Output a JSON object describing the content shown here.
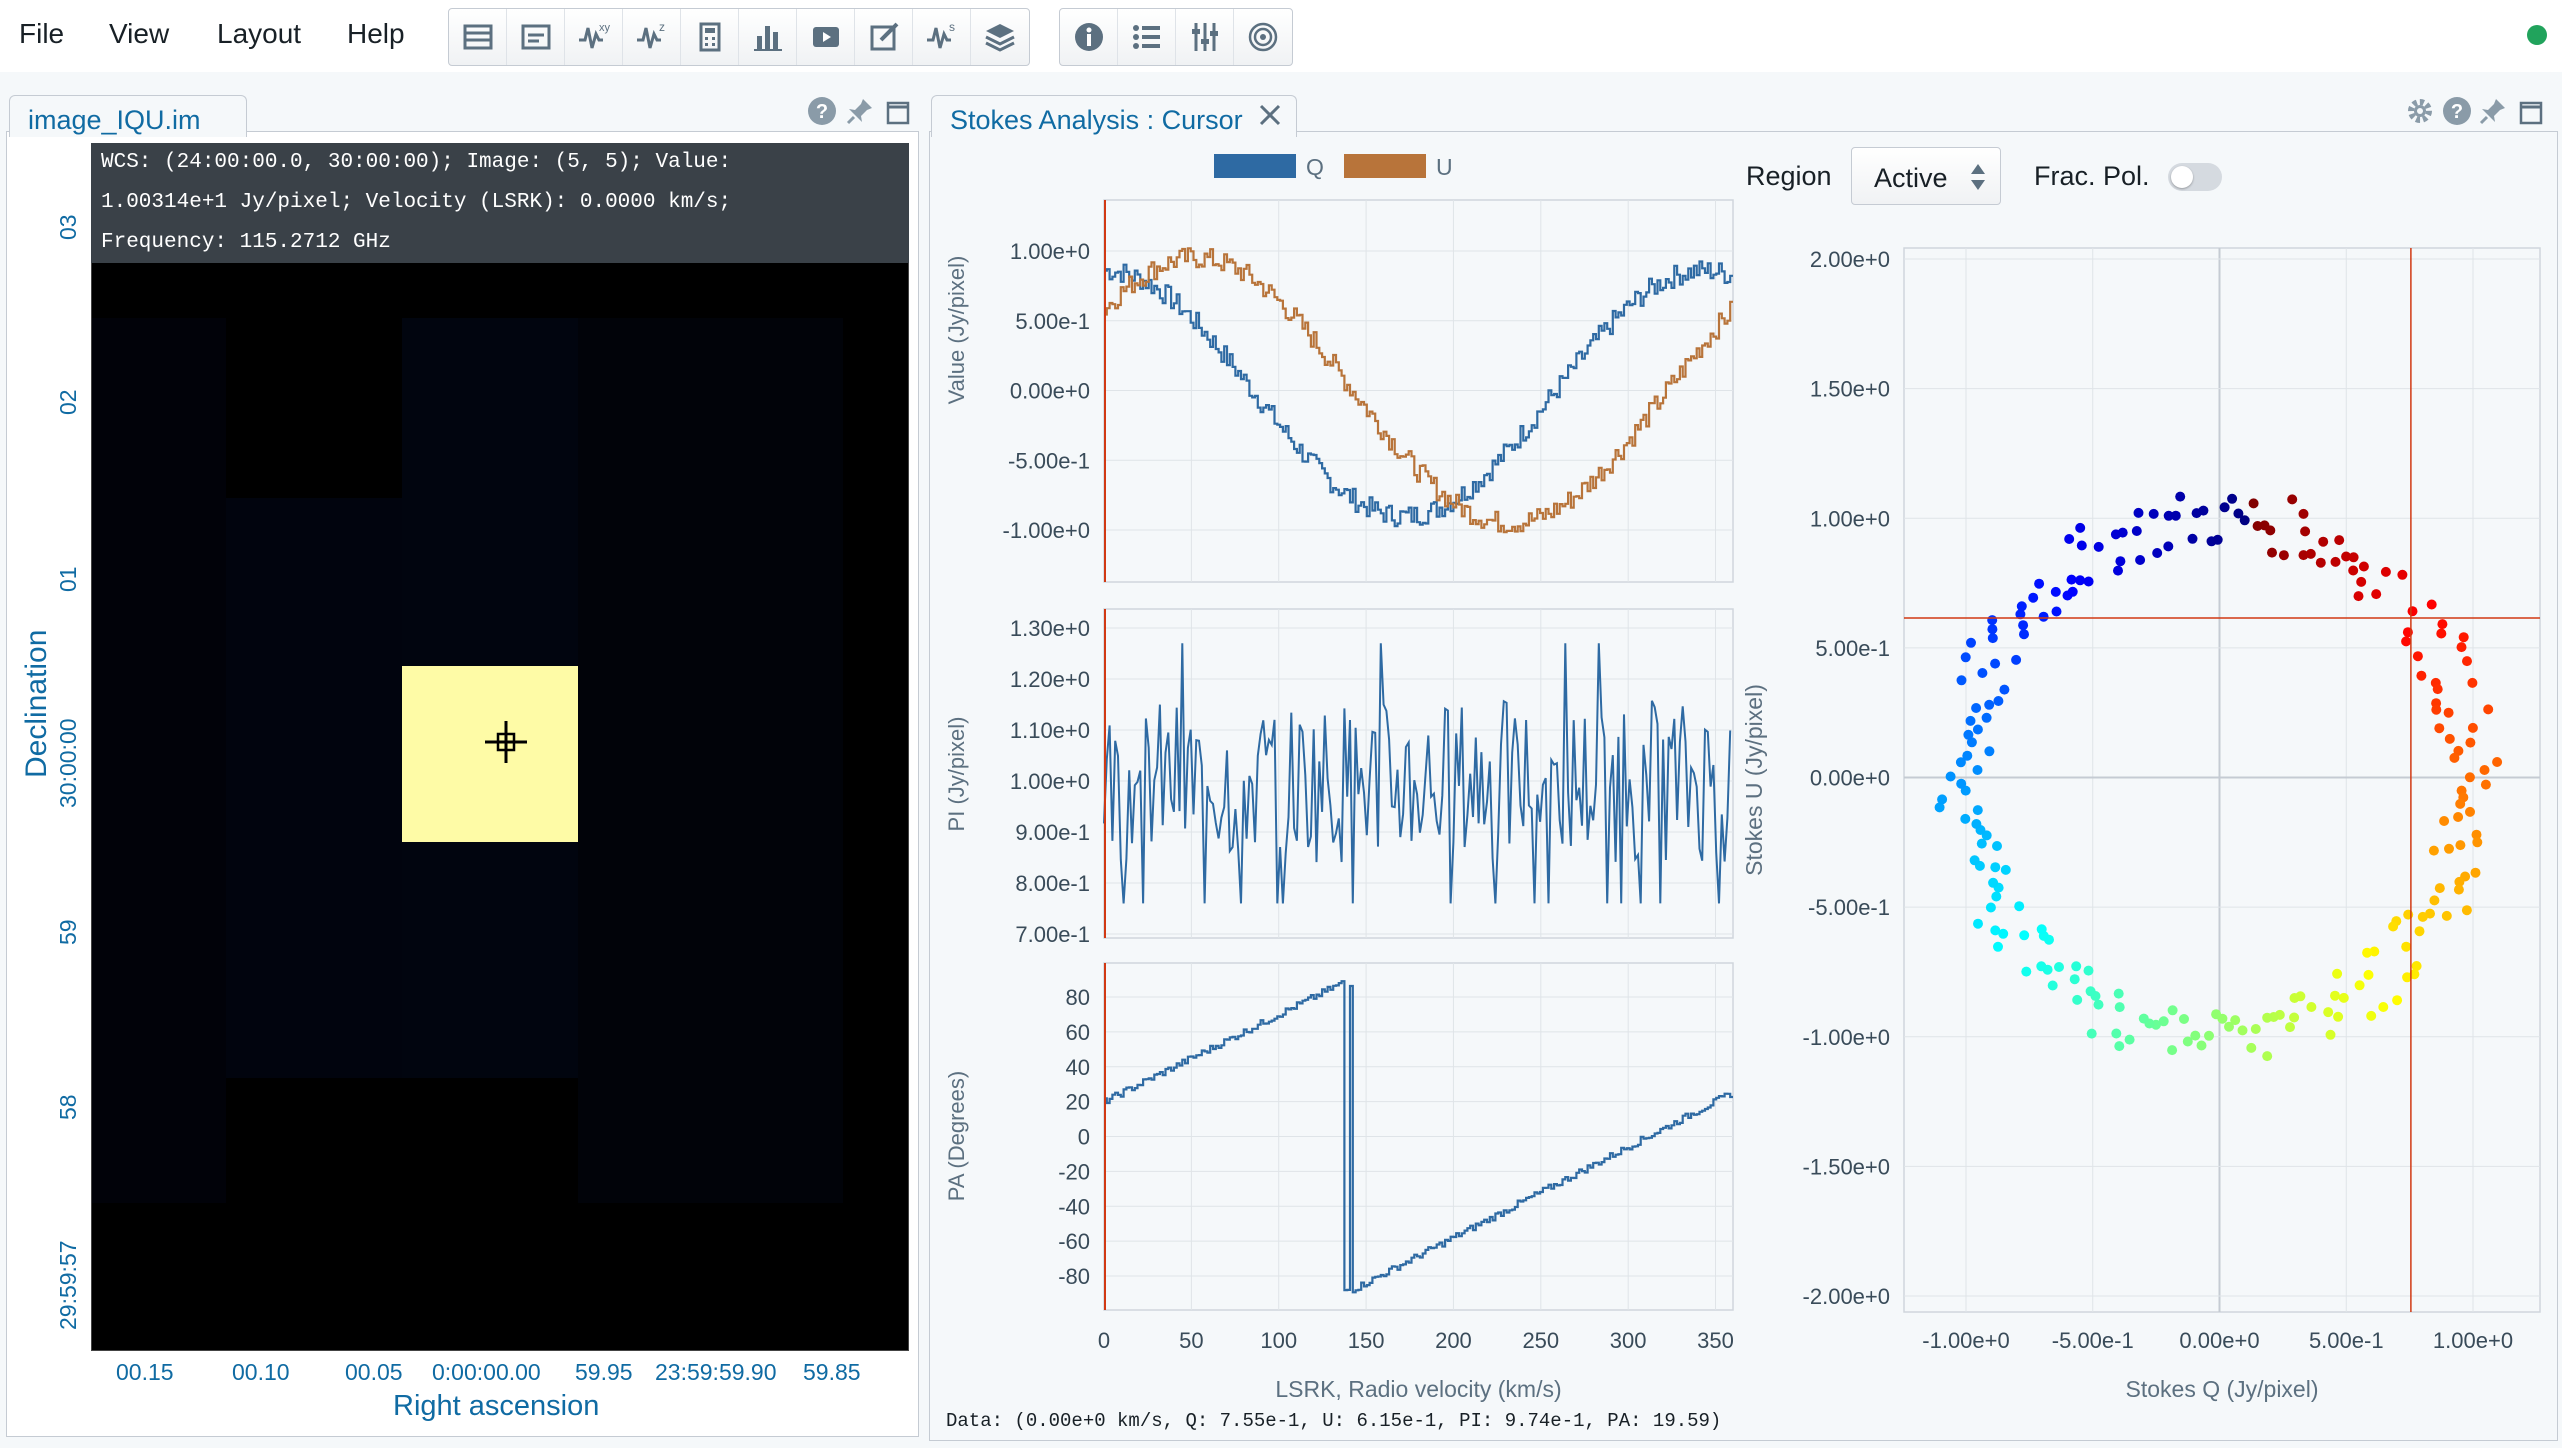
{
  "menu": {
    "items": [
      "File",
      "View",
      "Layout",
      "Help"
    ]
  },
  "toolbar": {
    "group1_icons": [
      "layers-list-icon",
      "render-config-icon",
      "spatial-profiler-icon",
      "spectral-profiler-icon",
      "statistics-calculator-icon",
      "histogram-icon",
      "animator-icon",
      "catalog-edit-icon",
      "stokes-analysis-icon",
      "image-list-icon"
    ],
    "group2_icons": [
      "info-icon",
      "list-icon",
      "sliders-icon",
      "target-icon"
    ],
    "xy_badge": "xy",
    "z_badge": "z",
    "s_badge": "s",
    "status_color": "#21a35c"
  },
  "image_panel": {
    "tab": "image_IQU.im",
    "info_lines": [
      "WCS: (24:00:00.0, 30:00:00); Image: (5, 5); Value:",
      "1.00314e+1 Jy/pixel; Velocity (LSRK): 0.0000 km/s;",
      "Frequency: 115.2712 GHz"
    ],
    "y_axis_title": "Declination",
    "y_ticks": [
      "03",
      "02",
      "01",
      "30:00:00",
      "59",
      "58",
      "29:59:57"
    ],
    "x_axis_title": "Right ascension",
    "x_ticks": [
      "00.15",
      "00.10",
      "00.05",
      "0:00:00.00",
      "59.95",
      "23:59:59.90",
      "59.85"
    ],
    "highlight_color": "#fefba6"
  },
  "stokes_panel": {
    "tab": "Stokes Analysis : Cursor",
    "legend": [
      {
        "name": "Q",
        "color": "#2e6aa3"
      },
      {
        "name": "U",
        "color": "#b8743a"
      }
    ],
    "region_label": "Region",
    "region_value": "Active",
    "frac_pol_label": "Frac. Pol.",
    "frac_pol_on": false,
    "top_ylabel": "Value (Jy/pixel)",
    "top_yticks": [
      "1.00e+0",
      "5.00e-1",
      "0.00e+0",
      "-5.00e-1",
      "-1.00e+0"
    ],
    "mid_ylabel": "PI (Jy/pixel)",
    "mid_yticks": [
      "1.30e+0",
      "1.20e+0",
      "1.10e+0",
      "1.00e+0",
      "9.00e-1",
      "8.00e-1",
      "7.00e-1"
    ],
    "pa_ylabel": "PA (Degrees)",
    "pa_yticks": [
      "80",
      "60",
      "40",
      "20",
      "0",
      "-20",
      "-40",
      "-60",
      "-80"
    ],
    "x_ticks": [
      "0",
      "50",
      "100",
      "150",
      "200",
      "250",
      "300",
      "350"
    ],
    "x_label": "LSRK, Radio velocity (km/s)",
    "qu_ylabel": "Stokes U (Jy/pixel)",
    "qu_yticks": [
      "2.00e+0",
      "1.50e+0",
      "1.00e+0",
      "5.00e-1",
      "0.00e+0",
      "-5.00e-1",
      "-1.00e+0",
      "-1.50e+0",
      "-2.00e+0"
    ],
    "qu_xlabel": "Stokes Q (Jy/pixel)",
    "qu_xticks": [
      "-1.00e+0",
      "-5.00e-1",
      "0.00e+0",
      "5.00e-1",
      "1.00e+0"
    ],
    "footer": "Data: (0.00e+0 km/s, Q: 7.55e-1, U: 6.15e-1, PI: 9.74e-1, PA: 19.59)",
    "cursor": {
      "velocity": 0,
      "q": 0.755,
      "u": 0.615
    }
  }
}
